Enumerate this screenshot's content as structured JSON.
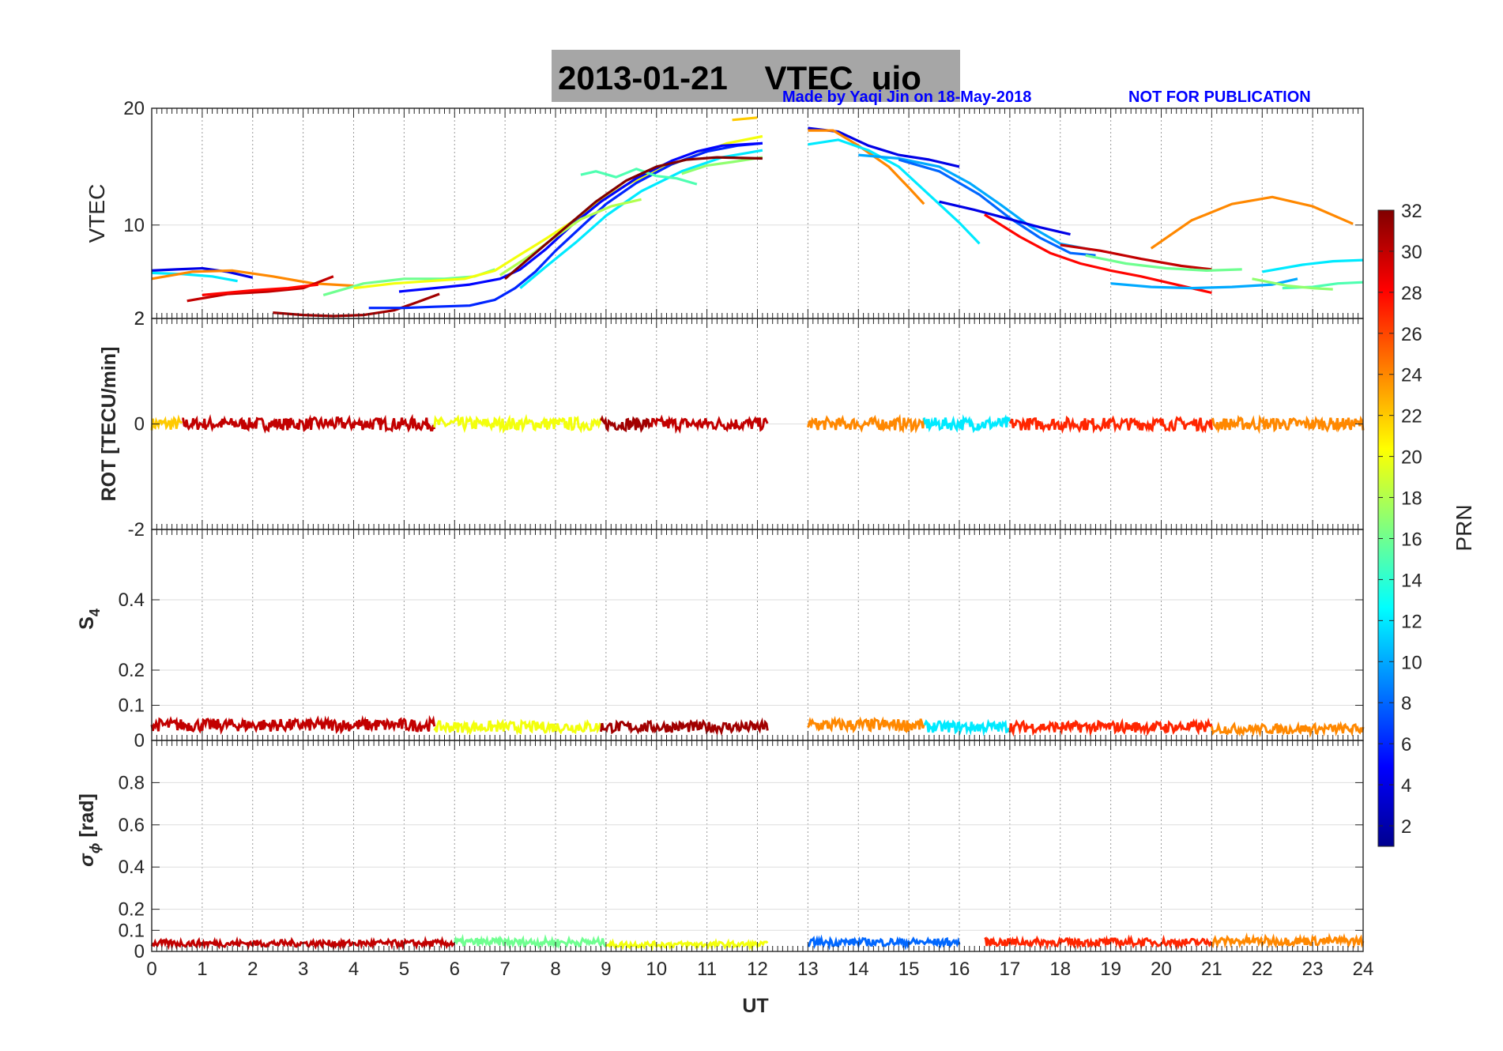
{
  "chart_data": {
    "type": "line",
    "title": "2013-01-21    VTEC  uio",
    "credit": "Made by Yaqi Jin on 18-May-2018",
    "notice": "NOT FOR PUBLICATION",
    "xlabel": "UT",
    "xlim": [
      0,
      24
    ],
    "xticks": [
      "0",
      "1",
      "2",
      "3",
      "4",
      "5",
      "6",
      "7",
      "8",
      "9",
      "10",
      "11",
      "12",
      "13",
      "14",
      "15",
      "16",
      "17",
      "18",
      "19",
      "20",
      "21",
      "22",
      "23",
      "24"
    ],
    "colorbar": {
      "label": "PRN",
      "range": [
        1,
        32
      ],
      "ticks": [
        "2",
        "4",
        "6",
        "8",
        "10",
        "12",
        "14",
        "16",
        "18",
        "20",
        "22",
        "24",
        "26",
        "28",
        "30",
        "32"
      ]
    },
    "panels": [
      {
        "id": "vtec",
        "ylabel": "VTEC",
        "ylim": [
          2,
          20
        ],
        "yticks": [
          "2",
          "10",
          "20"
        ],
        "series": [
          {
            "prn": 4,
            "x": [
              0,
              0.5,
              1,
              1.5,
              2
            ],
            "y": [
              6.1,
              6.2,
              6.3,
              6.0,
              5.5
            ]
          },
          {
            "prn": 12,
            "x": [
              0,
              0.6,
              1.2,
              1.7
            ],
            "y": [
              5.9,
              5.8,
              5.6,
              5.2
            ]
          },
          {
            "prn": 24,
            "x": [
              0,
              0.8,
              1.6,
              2.4,
              3.2,
              4.0
            ],
            "y": [
              5.4,
              6.0,
              6.1,
              5.6,
              5.0,
              4.8
            ]
          },
          {
            "prn": 30,
            "x": [
              0.7,
              1.5,
              2.3,
              3.0,
              3.6
            ],
            "y": [
              3.5,
              4.1,
              4.3,
              4.6,
              5.6
            ]
          },
          {
            "prn": 28,
            "x": [
              1.0,
              2.0,
              2.7,
              3.3
            ],
            "y": [
              4.0,
              4.4,
              4.6,
              4.9
            ]
          },
          {
            "prn": 31,
            "x": [
              2.4,
              3.0,
              3.6,
              4.2,
              4.8,
              5.2,
              5.7
            ],
            "y": [
              2.5,
              2.3,
              2.2,
              2.3,
              2.7,
              3.3,
              4.1
            ]
          },
          {
            "prn": 16,
            "x": [
              3.4,
              4.2,
              5.0,
              5.8,
              6.4,
              6.8
            ],
            "y": [
              4.0,
              5.0,
              5.4,
              5.4,
              5.6,
              6.2
            ]
          },
          {
            "prn": 20,
            "x": [
              4.0,
              4.8,
              5.5,
              6.2,
              6.8,
              7.2,
              7.8,
              8.3,
              8.8,
              9.3,
              10.0,
              10.8,
              11.4,
              12.1
            ],
            "y": [
              4.6,
              5.0,
              5.2,
              5.4,
              6.1,
              7.2,
              8.8,
              10.2,
              11.8,
              13.2,
              14.7,
              16.0,
              17.0,
              17.6
            ]
          },
          {
            "prn": 6,
            "x": [
              4.3,
              5.0,
              5.6,
              6.3,
              6.8,
              7.2,
              7.6,
              8.0,
              8.5,
              9.0,
              9.6,
              10.3,
              11.0,
              11.6,
              12.1
            ],
            "y": [
              2.9,
              2.9,
              3.0,
              3.1,
              3.6,
              4.6,
              6.0,
              7.8,
              9.8,
              11.8,
              13.6,
              15.2,
              16.3,
              16.8,
              17.0
            ]
          },
          {
            "prn": 5,
            "x": [
              4.9,
              5.6,
              6.3,
              6.9,
              7.3,
              7.8,
              8.3,
              8.9,
              9.6,
              10.3,
              10.8,
              11.3,
              12.1
            ],
            "y": [
              4.3,
              4.6,
              4.9,
              5.4,
              6.2,
              7.9,
              9.9,
              12.0,
              14.0,
              15.5,
              16.3,
              16.8,
              17.0
            ]
          },
          {
            "prn": 12,
            "x": [
              7.3,
              7.8,
              8.4,
              9.0,
              9.7,
              10.5,
              11.3,
              12.1
            ],
            "y": [
              4.6,
              6.4,
              8.5,
              10.8,
              12.9,
              14.6,
              15.8,
              16.4
            ]
          },
          {
            "prn": 18,
            "x": [
              6.9,
              7.5,
              8.0,
              8.5,
              9.1,
              9.7
            ],
            "y": [
              5.7,
              7.4,
              9.0,
              10.5,
              11.6,
              12.2
            ]
          },
          {
            "prn": 15,
            "x": [
              8.5,
              8.8,
              9.2,
              9.6,
              10.0,
              10.4,
              10.8
            ],
            "y": [
              14.3,
              14.6,
              14.1,
              14.8,
              14.2,
              14.0,
              13.5
            ]
          },
          {
            "prn": 17,
            "x": [
              10.5,
              11.0,
              11.5,
              12.1
            ],
            "y": [
              14.4,
              15.1,
              15.4,
              15.8
            ]
          },
          {
            "prn": 32,
            "x": [
              7.0,
              7.6,
              8.2,
              8.8,
              9.4,
              10.0,
              10.6,
              11.2,
              12.1
            ],
            "y": [
              5.4,
              7.6,
              9.8,
              12.0,
              13.8,
              15.0,
              15.6,
              15.8,
              15.7
            ]
          },
          {
            "prn": 22,
            "x": [
              11.5,
              12.0
            ],
            "y": [
              19.0,
              19.2
            ]
          },
          {
            "prn": 4,
            "x": [
              13.0,
              13.6,
              14.2,
              14.8,
              15.4,
              16.0
            ],
            "y": [
              18.3,
              18.0,
              16.8,
              16.0,
              15.6,
              15.0
            ]
          },
          {
            "prn": 24,
            "x": [
              13.0,
              13.5,
              14.0,
              14.6,
              15.0,
              15.3
            ],
            "y": [
              18.1,
              18.1,
              16.8,
              15.0,
              13.2,
              11.8
            ]
          },
          {
            "prn": 12,
            "x": [
              13.0,
              13.6,
              14.2,
              14.8,
              15.4,
              16.0,
              16.4
            ],
            "y": [
              16.9,
              17.3,
              16.4,
              15.0,
              12.6,
              10.2,
              8.4
            ]
          },
          {
            "prn": 10,
            "x": [
              14.0,
              14.8,
              15.6,
              16.2,
              16.8,
              17.4,
              18.0,
              18.6
            ],
            "y": [
              16.0,
              15.7,
              15.0,
              13.6,
              11.8,
              9.9,
              8.4,
              7.9
            ]
          },
          {
            "prn": 8,
            "x": [
              14.8,
              15.6,
              16.4,
              17.0,
              17.6,
              18.2,
              18.7
            ],
            "y": [
              15.6,
              14.6,
              12.6,
              10.6,
              8.9,
              7.6,
              7.4
            ]
          },
          {
            "prn": 4,
            "x": [
              15.6,
              16.3,
              17.0,
              17.6,
              18.2
            ],
            "y": [
              12.0,
              11.3,
              10.5,
              9.8,
              9.2
            ]
          },
          {
            "prn": 28,
            "x": [
              16.5,
              17.2,
              17.8,
              18.4,
              19.0,
              19.6,
              20.2,
              21.0
            ],
            "y": [
              10.9,
              9.0,
              7.6,
              6.7,
              6.1,
              5.6,
              5.0,
              4.2
            ]
          },
          {
            "prn": 30,
            "x": [
              18.0,
              18.8,
              19.6,
              20.4,
              21.0
            ],
            "y": [
              8.3,
              7.8,
              7.1,
              6.5,
              6.2
            ]
          },
          {
            "prn": 16,
            "x": [
              18.5,
              19.3,
              20.1,
              20.9,
              21.6
            ],
            "y": [
              7.4,
              6.7,
              6.3,
              6.1,
              6.2
            ]
          },
          {
            "prn": 10,
            "x": [
              19.0,
              19.8,
              20.6,
              21.4,
              22.2,
              22.7
            ],
            "y": [
              5.0,
              4.7,
              4.6,
              4.7,
              4.9,
              5.4
            ]
          },
          {
            "prn": 24,
            "x": [
              19.8,
              20.6,
              21.4,
              22.2,
              23.0,
              23.8
            ],
            "y": [
              8.0,
              10.4,
              11.8,
              12.4,
              11.6,
              10.1
            ]
          },
          {
            "prn": 12,
            "x": [
              22.0,
              22.8,
              23.4,
              24.0
            ],
            "y": [
              6.0,
              6.6,
              6.9,
              7.0
            ]
          },
          {
            "prn": 15,
            "x": [
              22.4,
              23.0,
              23.5,
              24.0
            ],
            "y": [
              4.6,
              4.7,
              5.0,
              5.1
            ]
          },
          {
            "prn": 17,
            "x": [
              21.8,
              22.5,
              23.0,
              23.4
            ],
            "y": [
              5.4,
              4.8,
              4.6,
              4.5
            ]
          }
        ]
      },
      {
        "id": "rot",
        "ylabel": "ROT [TECU/min]",
        "ylim": [
          -2,
          2
        ],
        "yticks": [
          "-2",
          "0",
          "2"
        ],
        "noise_level": 0.12,
        "segments": [
          {
            "prn": 22,
            "x": [
              0.0,
              0.6
            ]
          },
          {
            "prn": 30,
            "x": [
              0.6,
              5.6
            ]
          },
          {
            "prn": 20,
            "x": [
              5.6,
              8.9
            ]
          },
          {
            "prn": 31,
            "x": [
              8.9,
              9.9
            ]
          },
          {
            "prn": 30,
            "x": [
              9.9,
              12.2
            ]
          },
          {
            "prn": 24,
            "x": [
              13.0,
              15.3
            ]
          },
          {
            "prn": 12,
            "x": [
              15.3,
              17.0
            ]
          },
          {
            "prn": 27,
            "x": [
              17.0,
              21.0
            ]
          },
          {
            "prn": 24,
            "x": [
              21.0,
              24.0
            ]
          }
        ]
      },
      {
        "id": "s4",
        "ylabel": "S",
        "ylabel_sub": "4",
        "ylim": [
          0,
          0.6
        ],
        "yticks": [
          "0",
          "0.1",
          "0.2",
          "0.4"
        ],
        "segments": [
          {
            "prn": 30,
            "x": [
              0.0,
              5.6
            ],
            "level": 0.04
          },
          {
            "prn": 20,
            "x": [
              5.6,
              8.9
            ],
            "level": 0.035
          },
          {
            "prn": 31,
            "x": [
              8.9,
              12.2
            ],
            "level": 0.035
          },
          {
            "prn": 24,
            "x": [
              13.0,
              15.3
            ],
            "level": 0.04
          },
          {
            "prn": 12,
            "x": [
              15.3,
              17.0
            ],
            "level": 0.035
          },
          {
            "prn": 27,
            "x": [
              17.0,
              21.0
            ],
            "level": 0.035
          },
          {
            "prn": 24,
            "x": [
              21.0,
              24.0
            ],
            "level": 0.03
          }
        ]
      },
      {
        "id": "sigma_phi",
        "ylabel": "σ",
        "ylabel_sub": "ϕ",
        "ylabel_suffix": " [rad]",
        "ylim": [
          0,
          1
        ],
        "yticks": [
          "0",
          "0.1",
          "0.2",
          "0.4",
          "0.6",
          "0.8"
        ],
        "segments": [
          {
            "prn": 30,
            "x": [
              0.0,
              6.0
            ],
            "level": 0.035
          },
          {
            "prn": 16,
            "x": [
              6.0,
              9.0
            ],
            "level": 0.04
          },
          {
            "prn": 20,
            "x": [
              9.0,
              12.2
            ],
            "level": 0.03
          },
          {
            "prn": 8,
            "x": [
              13.0,
              16.0
            ],
            "level": 0.04
          },
          {
            "prn": 27,
            "x": [
              16.5,
              21.0
            ],
            "level": 0.04
          },
          {
            "prn": 24,
            "x": [
              21.0,
              24.0
            ],
            "level": 0.045
          }
        ]
      }
    ]
  }
}
